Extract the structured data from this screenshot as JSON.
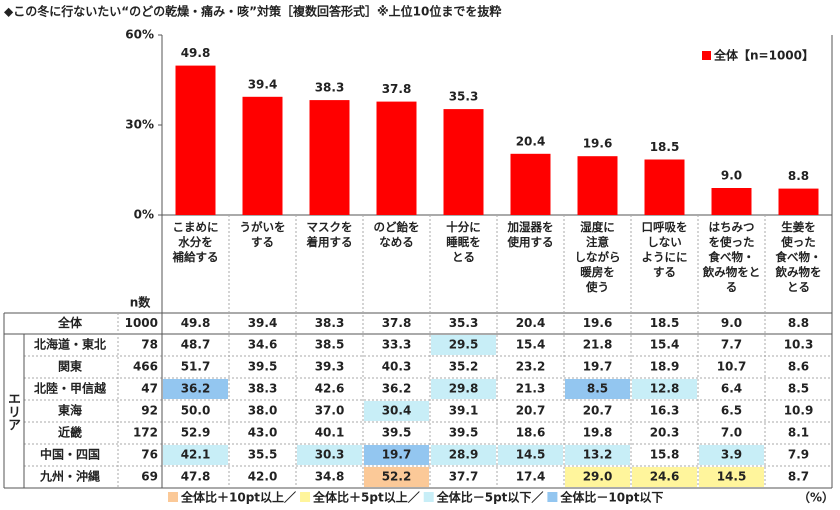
{
  "title": "◆この冬に行ないたい“のどの乾燥・痛み・咳”対策［複数回答形式］※上位10位までを抜粋",
  "chart_data": {
    "type": "bar",
    "color": "#ff0000",
    "categories": [
      "こまめに\n水分を\n補給する",
      "うがいを\nする",
      "マスクを\n着用する",
      "のど飴を\nなめる",
      "十分に\n睡眠を\nとる",
      "加湿器を\n使用する",
      "湿度に\n注意\nしながら\n暖房を\n使う",
      "口呼吸を\nしない\nようにに\nする",
      "はちみつ\nを使った\n食べ物・\n飲み物をと\nる",
      "生姜を\n使った\n食べ物・\n飲み物を\nとる"
    ],
    "values": [
      49.8,
      39.4,
      38.3,
      37.8,
      35.3,
      20.4,
      19.6,
      18.5,
      9.0,
      8.8
    ],
    "value_labels": [
      "49.8",
      "39.4",
      "38.3",
      "37.8",
      "35.3",
      "20.4",
      "19.6",
      "18.5",
      "9.0",
      "8.8"
    ],
    "legend": "全体【n=1000】",
    "ylim": [
      0,
      60
    ],
    "yticks": [
      {
        "value": 0,
        "label": "0%"
      },
      {
        "value": 30,
        "label": "30%"
      },
      {
        "value": 60,
        "label": "60%"
      }
    ]
  },
  "table": {
    "n_header": "n数",
    "total_label": "全体",
    "total_n": 1000,
    "group_label": "エリア",
    "rows": [
      {
        "label": "北海道・東北",
        "n": 78,
        "values": [
          "48.7",
          "34.6",
          "38.5",
          "33.3",
          "29.5",
          "15.4",
          "21.8",
          "15.4",
          "7.7",
          "10.3"
        ],
        "cell_colors": [
          null,
          null,
          null,
          null,
          "#c8eef7",
          null,
          null,
          null,
          null,
          null
        ]
      },
      {
        "label": "関東",
        "n": 466,
        "values": [
          "51.7",
          "39.5",
          "39.3",
          "40.3",
          "35.2",
          "23.2",
          "19.7",
          "18.9",
          "10.7",
          "8.6"
        ],
        "cell_colors": [
          null,
          null,
          null,
          null,
          null,
          null,
          null,
          null,
          null,
          null
        ]
      },
      {
        "label": "北陸・甲信越",
        "n": 47,
        "values": [
          "36.2",
          "38.3",
          "42.6",
          "36.2",
          "29.8",
          "21.3",
          "8.5",
          "12.8",
          "6.4",
          "8.5"
        ],
        "cell_colors": [
          "#93c6f0",
          null,
          null,
          null,
          "#c8eef7",
          null,
          "#93c6f0",
          "#c8eef7",
          null,
          null
        ]
      },
      {
        "label": "東海",
        "n": 92,
        "values": [
          "50.0",
          "38.0",
          "37.0",
          "30.4",
          "39.1",
          "20.7",
          "20.7",
          "16.3",
          "6.5",
          "10.9"
        ],
        "cell_colors": [
          null,
          null,
          null,
          "#c8eef7",
          null,
          null,
          null,
          null,
          null,
          null
        ]
      },
      {
        "label": "近畿",
        "n": 172,
        "values": [
          "52.9",
          "43.0",
          "40.1",
          "39.5",
          "39.5",
          "18.6",
          "19.8",
          "20.3",
          "7.0",
          "8.1"
        ],
        "cell_colors": [
          null,
          null,
          null,
          null,
          null,
          null,
          null,
          null,
          null,
          null
        ]
      },
      {
        "label": "中国・四国",
        "n": 76,
        "values": [
          "42.1",
          "35.5",
          "30.3",
          "19.7",
          "28.9",
          "14.5",
          "13.2",
          "15.8",
          "3.9",
          "7.9"
        ],
        "cell_colors": [
          "#c8eef7",
          null,
          "#c8eef7",
          "#93c6f0",
          "#c8eef7",
          "#c8eef7",
          "#c8eef7",
          null,
          "#c8eef7",
          null
        ]
      },
      {
        "label": "九州・沖縄",
        "n": 69,
        "values": [
          "47.8",
          "42.0",
          "34.8",
          "52.2",
          "37.7",
          "17.4",
          "29.0",
          "24.6",
          "14.5",
          "8.7"
        ],
        "cell_colors": [
          null,
          null,
          null,
          "#fbc998",
          null,
          null,
          "#fff59c",
          "#fff59c",
          "#fff59c",
          null
        ]
      }
    ]
  },
  "footer": {
    "items": [
      {
        "label": "全体比＋10pt以上／",
        "color": "#fbc998"
      },
      {
        "label": "全体比＋5pt以上／",
        "color": "#fff59c"
      },
      {
        "label": "全体比－5pt以下／",
        "color": "#c8eef7"
      },
      {
        "label": "全体比－10pt以下",
        "color": "#93c6f0"
      }
    ],
    "unit": "（%）"
  }
}
